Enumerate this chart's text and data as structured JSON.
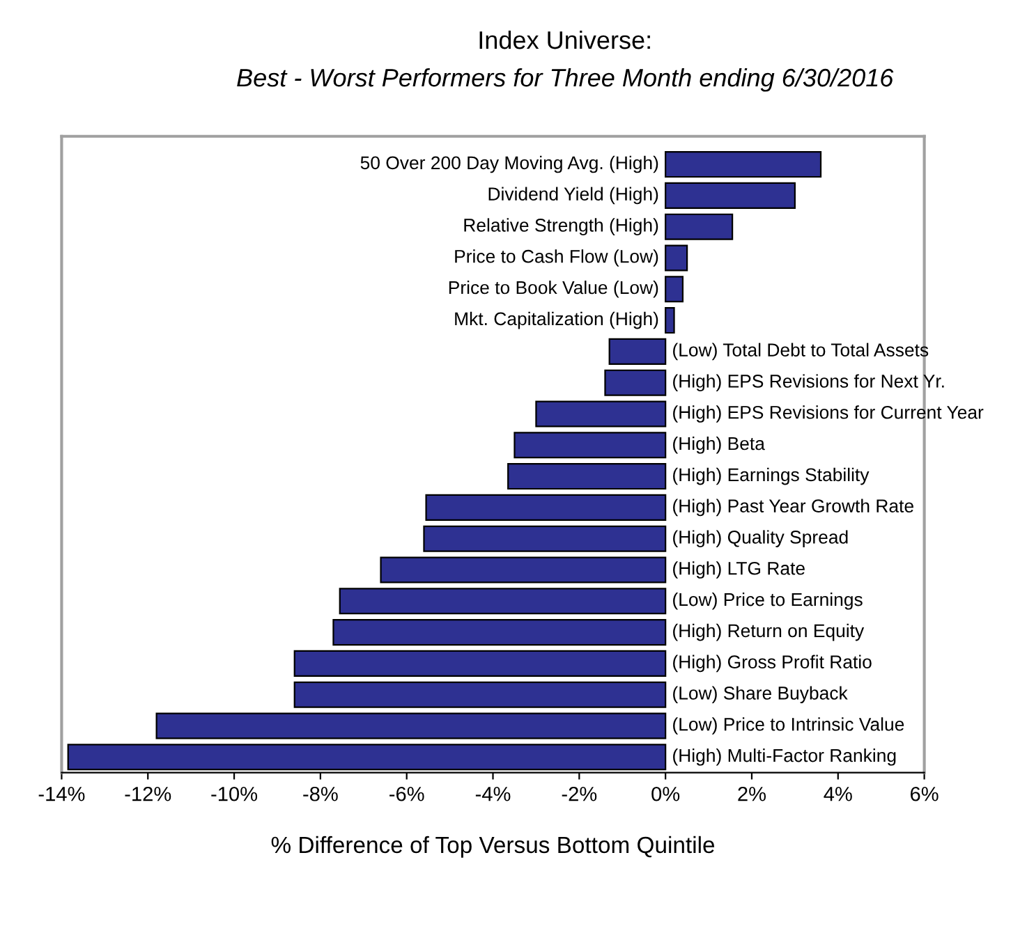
{
  "chart_data": {
    "type": "bar",
    "orientation": "horizontal",
    "title": "Index Universe:",
    "subtitle": "Best - Worst Performers for Three Month ending 6/30/2016",
    "xlabel": "% Difference of Top Versus Bottom Quintile",
    "categories": [
      "50 Over 200 Day Moving Avg. (High)",
      "Dividend Yield (High)",
      "Relative Strength (High)",
      "Price to Cash Flow (Low)",
      "Price to Book Value (Low)",
      "Mkt. Capitalization (High)",
      "(Low) Total Debt to Total Assets",
      "(High) EPS Revisions for Next Yr.",
      "(High) EPS Revisions for Current Year",
      "(High) Beta",
      "(High) Earnings Stability",
      "(High) Past Year Growth Rate",
      "(High) Quality Spread",
      "(High) LTG Rate",
      "(Low) Price to Earnings",
      "(High) Return on Equity",
      "(High) Gross Profit Ratio",
      "(Low) Share Buyback",
      "(Low) Price to Intrinsic Value",
      "(High) Multi-Factor Ranking"
    ],
    "values": [
      3.6,
      3.0,
      1.55,
      0.5,
      0.4,
      0.2,
      -1.3,
      -1.4,
      -3.0,
      -3.5,
      -3.65,
      -5.55,
      -5.6,
      -6.6,
      -7.55,
      -7.7,
      -8.6,
      -8.6,
      -11.8,
      -13.85
    ],
    "color": "#2e3192",
    "xlim": [
      -14,
      6
    ],
    "xticks": [
      {
        "value": -14,
        "label": "-14%"
      },
      {
        "value": -12,
        "label": "-12%"
      },
      {
        "value": -10,
        "label": "-10%"
      },
      {
        "value": -8,
        "label": "-8%"
      },
      {
        "value": -6,
        "label": "-6%"
      },
      {
        "value": -4,
        "label": "-4%"
      },
      {
        "value": -2,
        "label": "-2%"
      },
      {
        "value": 0,
        "label": "0%"
      },
      {
        "value": 2,
        "label": "2%"
      },
      {
        "value": 4,
        "label": "4%"
      },
      {
        "value": 6,
        "label": "6%"
      }
    ],
    "tick_labels": "x",
    "grid": false,
    "legend": false
  }
}
